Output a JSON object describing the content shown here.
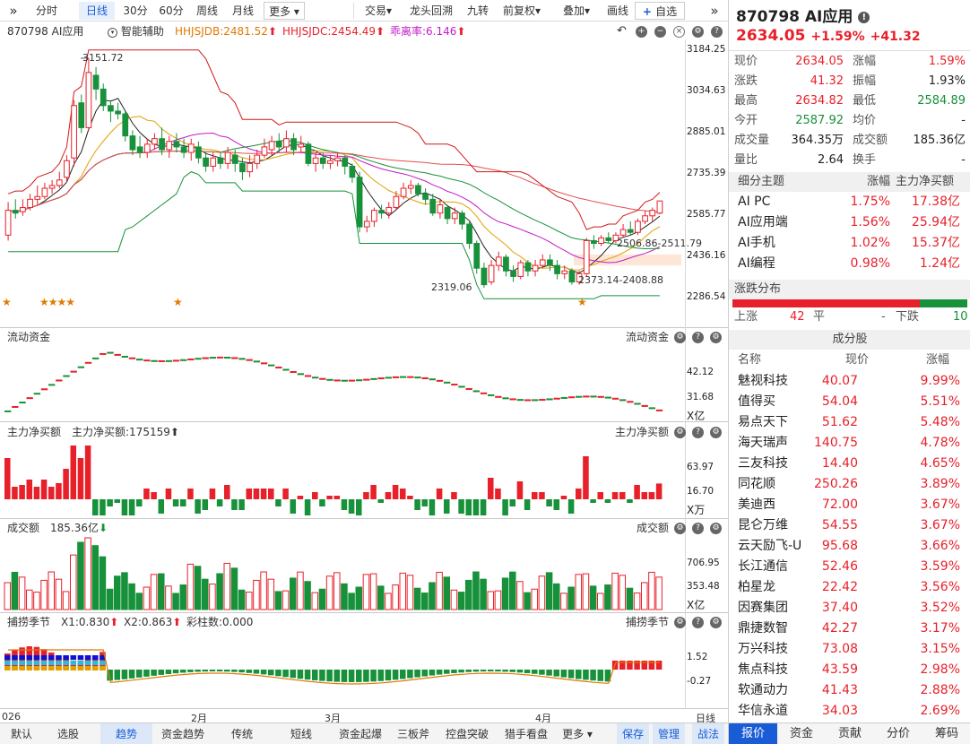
{
  "toolbar": {
    "collapse_glyph": "»",
    "items": [
      "分时",
      "日线",
      "30分",
      "60分",
      "周线",
      "月线"
    ],
    "more": "更多",
    "right_items": [
      "交易",
      "龙头回溯",
      "九转",
      "前复权",
      "叠加",
      "画线"
    ],
    "add_fav": "自选",
    "expand_glyph": "»"
  },
  "info": {
    "name": "870798 AI应用",
    "assist": "智能辅助",
    "jdb": "HHJSJDB:2481.52",
    "jdc": "HHJSJDC:2454.49",
    "gap": "乖离率:6.146"
  },
  "main_chart": {
    "price_axis": [
      "3184.25",
      "3034.63",
      "2885.01",
      "2735.39",
      "2585.77",
      "2436.16",
      "2286.54"
    ],
    "high_label": "3151.72",
    "low_label": "2319.06",
    "range1": "2506.86-2511.79",
    "range2": "2373.14-2408.88"
  },
  "flow_panel": {
    "title": "流动资金",
    "right_title": "流动资金",
    "axis": [
      "42.12",
      "31.68"
    ],
    "unit": "X亿"
  },
  "net_panel": {
    "title": "主力净买额",
    "value": "主力净买额:175159",
    "right_title": "主力净买额",
    "axis": [
      "63.97",
      "16.70"
    ],
    "unit": "X万"
  },
  "amount_panel": {
    "title": "成交额",
    "value": "185.36亿",
    "right_title": "成交额",
    "axis": [
      "706.95",
      "353.48"
    ],
    "unit": "X亿"
  },
  "season_panel": {
    "title": "捕捞季节",
    "x1": "X1:0.830",
    "x2": "X2:0.863",
    "bar": "彩柱数:0.000",
    "right_title": "捕捞季节",
    "axis": [
      "1.52",
      "-0.27"
    ]
  },
  "time_axis": {
    "labels": [
      "026",
      "2月",
      "3月",
      "4月"
    ],
    "period": "日线"
  },
  "bottom_tabs": [
    "默认",
    "选股",
    "趋势",
    "资金趋势",
    "传统",
    "短线",
    "资金起爆",
    "三板斧",
    "控盘突破",
    "猎手看盘",
    "更多"
  ],
  "bottom_right": [
    "保存",
    "管理",
    "战法"
  ],
  "quote": {
    "code": "870798 AI应用",
    "price": "2634.05",
    "pct": "+1.59%",
    "chg": "+41.32",
    "rows": [
      {
        "l1": "现价",
        "v1": "2634.05",
        "c1": "red",
        "l2": "涨幅",
        "v2": "1.59%",
        "c2": "red"
      },
      {
        "l1": "涨跌",
        "v1": "41.32",
        "c1": "red",
        "l2": "振幅",
        "v2": "1.93%",
        "c2": "dark"
      },
      {
        "l1": "最高",
        "v1": "2634.82",
        "c1": "red",
        "l2": "最低",
        "v2": "2584.89",
        "c2": "green"
      },
      {
        "l1": "今开",
        "v1": "2587.92",
        "c1": "green",
        "l2": "均价",
        "v2": "-",
        "c2": "dark"
      },
      {
        "l1": "成交量",
        "v1": "364.35万",
        "c1": "dark",
        "l2": "成交额",
        "v2": "185.36亿",
        "c2": "dark"
      },
      {
        "l1": "量比",
        "v1": "2.64",
        "c1": "dark",
        "l2": "换手",
        "v2": "-",
        "c2": "dark"
      }
    ]
  },
  "themes": {
    "headers": [
      "细分主题",
      "涨幅",
      "主力净买额"
    ],
    "rows": [
      {
        "name": "AI PC",
        "pct": "1.75%",
        "net": "17.38亿"
      },
      {
        "name": "AI应用端",
        "pct": "1.56%",
        "net": "25.94亿"
      },
      {
        "name": "AI手机",
        "pct": "1.02%",
        "net": "15.37亿"
      },
      {
        "name": "AI编程",
        "pct": "0.98%",
        "net": "1.24亿"
      }
    ]
  },
  "distribution": {
    "title": "涨跌分布",
    "up_label": "上涨",
    "up": "42",
    "flat_label": "平",
    "flat": "-",
    "down_label": "下跌",
    "down": "10"
  },
  "components": {
    "title": "成分股",
    "headers": [
      "名称",
      "现价",
      "涨幅"
    ],
    "rows": [
      {
        "name": "魅视科技",
        "price": "40.07",
        "pct": "9.99%"
      },
      {
        "name": "值得买",
        "price": "54.04",
        "pct": "5.51%"
      },
      {
        "name": "易点天下",
        "price": "51.62",
        "pct": "5.48%"
      },
      {
        "name": "海天瑞声",
        "price": "140.75",
        "pct": "4.78%"
      },
      {
        "name": "三友科技",
        "price": "14.40",
        "pct": "4.65%"
      },
      {
        "name": "同花顺",
        "price": "250.26",
        "pct": "3.89%"
      },
      {
        "name": "美迪西",
        "price": "72.00",
        "pct": "3.67%"
      },
      {
        "name": "昆仑万维",
        "price": "54.55",
        "pct": "3.67%"
      },
      {
        "name": "云天励飞-U",
        "price": "95.68",
        "pct": "3.66%"
      },
      {
        "name": "长江通信",
        "price": "52.46",
        "pct": "3.59%"
      },
      {
        "name": "柏星龙",
        "price": "22.42",
        "pct": "3.56%"
      },
      {
        "name": "因赛集团",
        "price": "37.40",
        "pct": "3.52%"
      },
      {
        "name": "鼎捷数智",
        "price": "42.27",
        "pct": "3.17%"
      },
      {
        "name": "万兴科技",
        "price": "73.08",
        "pct": "3.15%"
      },
      {
        "name": "焦点科技",
        "price": "43.59",
        "pct": "2.98%"
      },
      {
        "name": "软通动力",
        "price": "41.43",
        "pct": "2.88%"
      },
      {
        "name": "华信永道",
        "price": "34.03",
        "pct": "2.69%"
      }
    ]
  },
  "right_tabs": [
    "报价",
    "资金",
    "贡献",
    "分价",
    "筹码"
  ],
  "colors": {
    "up": "#e8202a",
    "down": "#17913a",
    "accent": "#1a5bd6"
  },
  "candles": [
    {
      "o": 2510,
      "c": 2600,
      "h": 2630,
      "l": 2490
    },
    {
      "o": 2600,
      "c": 2590,
      "h": 2640,
      "l": 2570
    },
    {
      "o": 2595,
      "c": 2610,
      "h": 2640,
      "l": 2580
    },
    {
      "o": 2610,
      "c": 2640,
      "h": 2660,
      "l": 2600
    },
    {
      "o": 2640,
      "c": 2650,
      "h": 2690,
      "l": 2620
    },
    {
      "o": 2650,
      "c": 2680,
      "h": 2700,
      "l": 2640
    },
    {
      "o": 2680,
      "c": 2690,
      "h": 2710,
      "l": 2660
    },
    {
      "o": 2690,
      "c": 2710,
      "h": 2740,
      "l": 2680
    },
    {
      "o": 2720,
      "c": 2780,
      "h": 2800,
      "l": 2700
    },
    {
      "o": 2790,
      "c": 2980,
      "h": 3000,
      "l": 2760
    },
    {
      "o": 2990,
      "c": 2900,
      "h": 3020,
      "l": 2880
    },
    {
      "o": 2900,
      "c": 3100,
      "h": 3152,
      "l": 2890
    },
    {
      "o": 3090,
      "c": 3040,
      "h": 3120,
      "l": 3000
    },
    {
      "o": 3040,
      "c": 2980,
      "h": 3060,
      "l": 2960
    },
    {
      "o": 2980,
      "c": 2960,
      "h": 3000,
      "l": 2920
    },
    {
      "o": 2960,
      "c": 2950,
      "h": 2990,
      "l": 2930
    },
    {
      "o": 2950,
      "c": 2870,
      "h": 2960,
      "l": 2850
    },
    {
      "o": 2870,
      "c": 2820,
      "h": 2890,
      "l": 2800
    },
    {
      "o": 2830,
      "c": 2810,
      "h": 2870,
      "l": 2790
    },
    {
      "o": 2810,
      "c": 2840,
      "h": 2860,
      "l": 2790
    },
    {
      "o": 2840,
      "c": 2860,
      "h": 2880,
      "l": 2820
    },
    {
      "o": 2860,
      "c": 2820,
      "h": 2900,
      "l": 2800
    },
    {
      "o": 2820,
      "c": 2850,
      "h": 2870,
      "l": 2790
    },
    {
      "o": 2850,
      "c": 2830,
      "h": 2880,
      "l": 2810
    },
    {
      "o": 2830,
      "c": 2810,
      "h": 2860,
      "l": 2790
    },
    {
      "o": 2810,
      "c": 2840,
      "h": 2860,
      "l": 2780
    },
    {
      "o": 2830,
      "c": 2790,
      "h": 2850,
      "l": 2770
    },
    {
      "o": 2790,
      "c": 2760,
      "h": 2810,
      "l": 2740
    },
    {
      "o": 2760,
      "c": 2790,
      "h": 2810,
      "l": 2740
    },
    {
      "o": 2790,
      "c": 2770,
      "h": 2810,
      "l": 2750
    },
    {
      "o": 2770,
      "c": 2810,
      "h": 2830,
      "l": 2750
    },
    {
      "o": 2800,
      "c": 2770,
      "h": 2820,
      "l": 2740
    },
    {
      "o": 2770,
      "c": 2740,
      "h": 2790,
      "l": 2710
    },
    {
      "o": 2740,
      "c": 2770,
      "h": 2800,
      "l": 2720
    },
    {
      "o": 2770,
      "c": 2800,
      "h": 2820,
      "l": 2750
    },
    {
      "o": 2800,
      "c": 2830,
      "h": 2860,
      "l": 2790
    },
    {
      "o": 2820,
      "c": 2850,
      "h": 2870,
      "l": 2800
    },
    {
      "o": 2850,
      "c": 2830,
      "h": 2880,
      "l": 2810
    },
    {
      "o": 2830,
      "c": 2860,
      "h": 2890,
      "l": 2810
    },
    {
      "o": 2860,
      "c": 2820,
      "h": 2880,
      "l": 2800
    },
    {
      "o": 2830,
      "c": 2840,
      "h": 2870,
      "l": 2810
    },
    {
      "o": 2840,
      "c": 2770,
      "h": 2850,
      "l": 2760
    },
    {
      "o": 2770,
      "c": 2790,
      "h": 2810,
      "l": 2740
    },
    {
      "o": 2790,
      "c": 2770,
      "h": 2810,
      "l": 2750
    },
    {
      "o": 2770,
      "c": 2780,
      "h": 2800,
      "l": 2750
    },
    {
      "o": 2780,
      "c": 2790,
      "h": 2810,
      "l": 2760
    },
    {
      "o": 2790,
      "c": 2760,
      "h": 2800,
      "l": 2730
    },
    {
      "o": 2760,
      "c": 2720,
      "h": 2770,
      "l": 2700
    },
    {
      "o": 2720,
      "c": 2540,
      "h": 2740,
      "l": 2520
    },
    {
      "o": 2540,
      "c": 2560,
      "h": 2580,
      "l": 2520
    },
    {
      "o": 2560,
      "c": 2600,
      "h": 2610,
      "l": 2540
    },
    {
      "o": 2600,
      "c": 2590,
      "h": 2620,
      "l": 2570
    },
    {
      "o": 2590,
      "c": 2610,
      "h": 2630,
      "l": 2570
    },
    {
      "o": 2610,
      "c": 2650,
      "h": 2670,
      "l": 2600
    },
    {
      "o": 2650,
      "c": 2680,
      "h": 2700,
      "l": 2640
    },
    {
      "o": 2680,
      "c": 2690,
      "h": 2710,
      "l": 2660
    },
    {
      "o": 2690,
      "c": 2660,
      "h": 2700,
      "l": 2650
    },
    {
      "o": 2660,
      "c": 2640,
      "h": 2680,
      "l": 2620
    },
    {
      "o": 2640,
      "c": 2590,
      "h": 2660,
      "l": 2580
    },
    {
      "o": 2590,
      "c": 2620,
      "h": 2640,
      "l": 2570
    },
    {
      "o": 2610,
      "c": 2570,
      "h": 2620,
      "l": 2550
    },
    {
      "o": 2570,
      "c": 2590,
      "h": 2610,
      "l": 2550
    },
    {
      "o": 2590,
      "c": 2550,
      "h": 2600,
      "l": 2530
    },
    {
      "o": 2550,
      "c": 2480,
      "h": 2560,
      "l": 2460
    },
    {
      "o": 2480,
      "c": 2390,
      "h": 2490,
      "l": 2370
    },
    {
      "o": 2390,
      "c": 2330,
      "h": 2410,
      "l": 2319
    },
    {
      "o": 2340,
      "c": 2400,
      "h": 2420,
      "l": 2330
    },
    {
      "o": 2400,
      "c": 2430,
      "h": 2450,
      "l": 2380
    },
    {
      "o": 2430,
      "c": 2380,
      "h": 2440,
      "l": 2360
    },
    {
      "o": 2380,
      "c": 2360,
      "h": 2400,
      "l": 2340
    },
    {
      "o": 2360,
      "c": 2410,
      "h": 2420,
      "l": 2350
    },
    {
      "o": 2410,
      "c": 2380,
      "h": 2420,
      "l": 2360
    },
    {
      "o": 2380,
      "c": 2400,
      "h": 2420,
      "l": 2360
    },
    {
      "o": 2400,
      "c": 2420,
      "h": 2440,
      "l": 2390
    },
    {
      "o": 2420,
      "c": 2400,
      "h": 2440,
      "l": 2380
    },
    {
      "o": 2400,
      "c": 2370,
      "h": 2420,
      "l": 2350
    },
    {
      "o": 2370,
      "c": 2380,
      "h": 2400,
      "l": 2350
    },
    {
      "o": 2380,
      "c": 2340,
      "h": 2390,
      "l": 2330
    },
    {
      "o": 2340,
      "c": 2370,
      "h": 2380,
      "l": 2330
    },
    {
      "o": 2370,
      "c": 2490,
      "h": 2500,
      "l": 2360
    },
    {
      "o": 2490,
      "c": 2480,
      "h": 2510,
      "l": 2460
    },
    {
      "o": 2480,
      "c": 2500,
      "h": 2510,
      "l": 2470
    },
    {
      "o": 2500,
      "c": 2490,
      "h": 2520,
      "l": 2480
    },
    {
      "o": 2490,
      "c": 2510,
      "h": 2520,
      "l": 2480
    },
    {
      "o": 2510,
      "c": 2530,
      "h": 2550,
      "l": 2500
    },
    {
      "o": 2530,
      "c": 2520,
      "h": 2560,
      "l": 2510
    },
    {
      "o": 2520,
      "c": 2560,
      "h": 2570,
      "l": 2510
    },
    {
      "o": 2560,
      "c": 2580,
      "h": 2600,
      "l": 2550
    },
    {
      "o": 2580,
      "c": 2600,
      "h": 2610,
      "l": 2560
    },
    {
      "o": 2590,
      "c": 2634,
      "h": 2635,
      "l": 2585
    }
  ]
}
